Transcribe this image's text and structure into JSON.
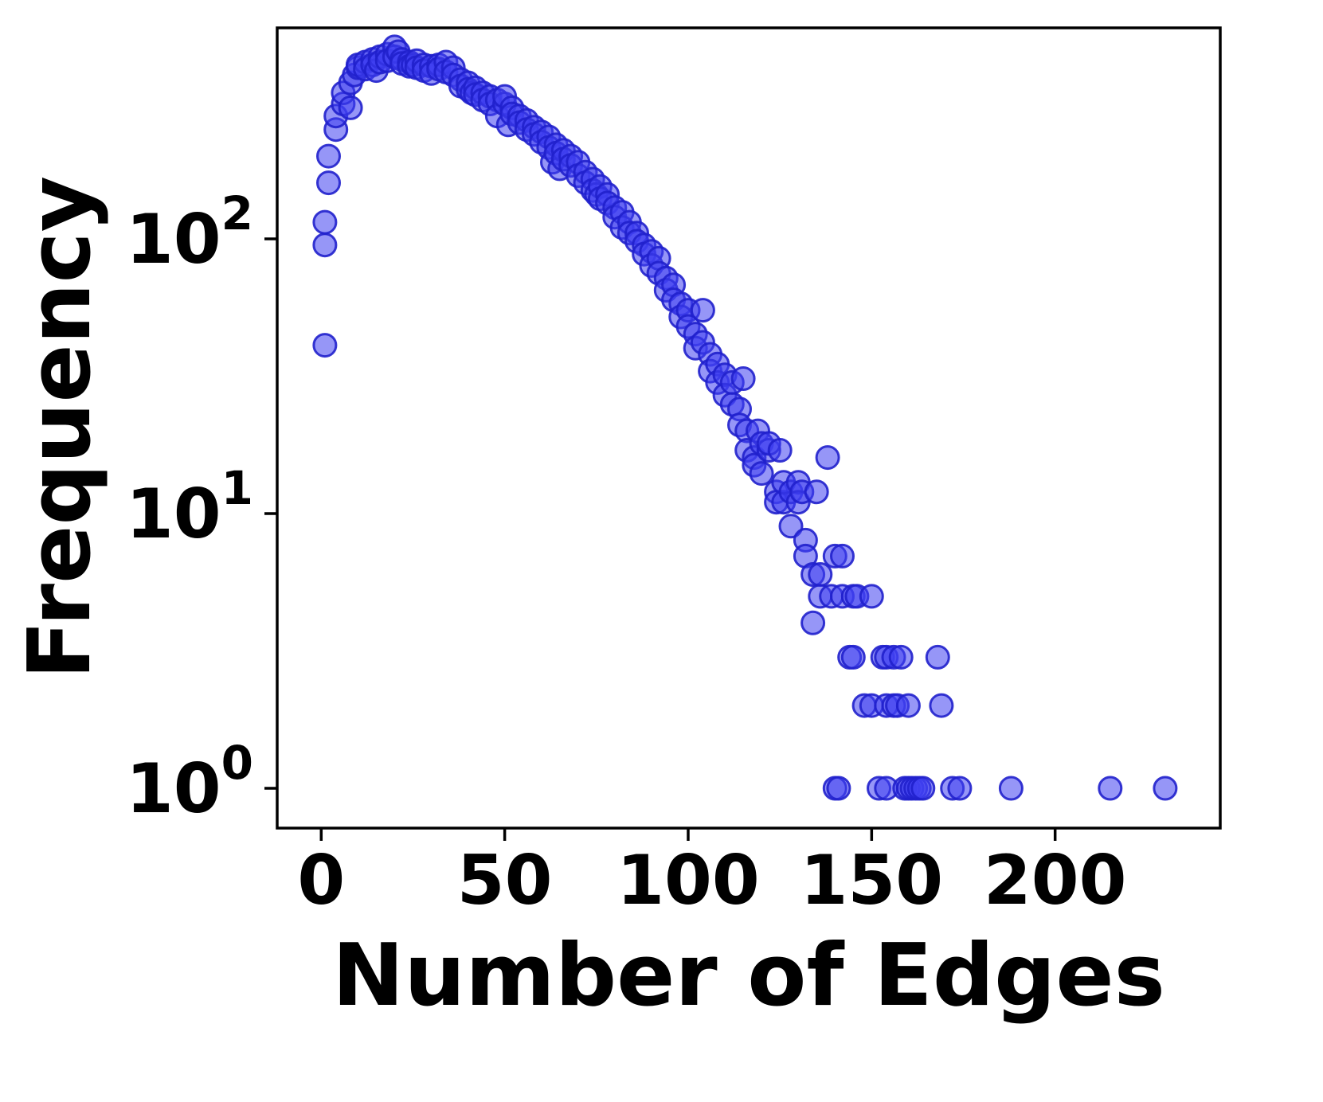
{
  "chart_data": {
    "type": "scatter",
    "title": "",
    "xlabel": "Number of Edges",
    "ylabel": "Frequency",
    "yscale": "log",
    "grid": false,
    "legend": null,
    "xlim": [
      -12,
      245
    ],
    "ylim": [
      0.72,
      590
    ],
    "x_ticks": [
      0,
      50,
      100,
      150,
      200
    ],
    "y_ticks": [
      {
        "base": "10",
        "exp": "0",
        "value": 1
      },
      {
        "base": "10",
        "exp": "1",
        "value": 10
      },
      {
        "base": "10",
        "exp": "2",
        "value": 100
      }
    ],
    "marker": {
      "shape": "circle",
      "fill_color": "#4040f0",
      "fill_opacity": 0.55,
      "edge_color": "#2020cc",
      "edge_opacity": 0.9,
      "radius_px": 14
    },
    "frame_color": "#000000",
    "points": [
      [
        1,
        41
      ],
      [
        1,
        95
      ],
      [
        1,
        115
      ],
      [
        2,
        160
      ],
      [
        2,
        200
      ],
      [
        4,
        250
      ],
      [
        4,
        280
      ],
      [
        6,
        310
      ],
      [
        6,
        340
      ],
      [
        8,
        300
      ],
      [
        8,
        370
      ],
      [
        9,
        395
      ],
      [
        10,
        420
      ],
      [
        10,
        430
      ],
      [
        12,
        440
      ],
      [
        12,
        415
      ],
      [
        14,
        450
      ],
      [
        14,
        430
      ],
      [
        15,
        410
      ],
      [
        16,
        460
      ],
      [
        16,
        440
      ],
      [
        18,
        470
      ],
      [
        18,
        445
      ],
      [
        20,
        500
      ],
      [
        20,
        460
      ],
      [
        21,
        480
      ],
      [
        22,
        450
      ],
      [
        22,
        435
      ],
      [
        24,
        440
      ],
      [
        24,
        425
      ],
      [
        25,
        430
      ],
      [
        26,
        445
      ],
      [
        26,
        420
      ],
      [
        28,
        430
      ],
      [
        28,
        410
      ],
      [
        30,
        425
      ],
      [
        30,
        400
      ],
      [
        32,
        430
      ],
      [
        32,
        415
      ],
      [
        34,
        440
      ],
      [
        34,
        405
      ],
      [
        36,
        420
      ],
      [
        36,
        395
      ],
      [
        38,
        380
      ],
      [
        38,
        360
      ],
      [
        40,
        370
      ],
      [
        40,
        350
      ],
      [
        41,
        340
      ],
      [
        42,
        355
      ],
      [
        42,
        335
      ],
      [
        44,
        340
      ],
      [
        44,
        320
      ],
      [
        46,
        330
      ],
      [
        46,
        310
      ],
      [
        48,
        320
      ],
      [
        48,
        280
      ],
      [
        50,
        310
      ],
      [
        50,
        330
      ],
      [
        51,
        260
      ],
      [
        52,
        300
      ],
      [
        52,
        285
      ],
      [
        54,
        280
      ],
      [
        54,
        265
      ],
      [
        56,
        270
      ],
      [
        56,
        250
      ],
      [
        58,
        255
      ],
      [
        58,
        240
      ],
      [
        60,
        245
      ],
      [
        60,
        225
      ],
      [
        62,
        235
      ],
      [
        62,
        215
      ],
      [
        63,
        190
      ],
      [
        64,
        220
      ],
      [
        64,
        205
      ],
      [
        65,
        180
      ],
      [
        66,
        210
      ],
      [
        66,
        195
      ],
      [
        68,
        200
      ],
      [
        68,
        185
      ],
      [
        70,
        190
      ],
      [
        70,
        170
      ],
      [
        72,
        175
      ],
      [
        72,
        160
      ],
      [
        74,
        165
      ],
      [
        74,
        150
      ],
      [
        75,
        145
      ],
      [
        76,
        155
      ],
      [
        76,
        140
      ],
      [
        78,
        145
      ],
      [
        78,
        135
      ],
      [
        80,
        130
      ],
      [
        80,
        120
      ],
      [
        82,
        125
      ],
      [
        82,
        110
      ],
      [
        84,
        115
      ],
      [
        84,
        105
      ],
      [
        86,
        105
      ],
      [
        86,
        98
      ],
      [
        88,
        95
      ],
      [
        88,
        88
      ],
      [
        90,
        90
      ],
      [
        90,
        80
      ],
      [
        92,
        85
      ],
      [
        92,
        75
      ],
      [
        94,
        72
      ],
      [
        94,
        65
      ],
      [
        96,
        68
      ],
      [
        96,
        60
      ],
      [
        98,
        58
      ],
      [
        98,
        52
      ],
      [
        100,
        55
      ],
      [
        100,
        48
      ],
      [
        102,
        45
      ],
      [
        102,
        40
      ],
      [
        104,
        42
      ],
      [
        104,
        55
      ],
      [
        106,
        38
      ],
      [
        106,
        33
      ],
      [
        108,
        35
      ],
      [
        108,
        30
      ],
      [
        110,
        32
      ],
      [
        110,
        27
      ],
      [
        112,
        25
      ],
      [
        112,
        30
      ],
      [
        114,
        24
      ],
      [
        114,
        21
      ],
      [
        115,
        31
      ],
      [
        116,
        20
      ],
      [
        116,
        17
      ],
      [
        118,
        16
      ],
      [
        118,
        15
      ],
      [
        119,
        20
      ],
      [
        120,
        18
      ],
      [
        120,
        14
      ],
      [
        122,
        17
      ],
      [
        122,
        18
      ],
      [
        124,
        12
      ],
      [
        124,
        11
      ],
      [
        125,
        17
      ],
      [
        126,
        11
      ],
      [
        126,
        13
      ],
      [
        128,
        12
      ],
      [
        128,
        9
      ],
      [
        130,
        13
      ],
      [
        130,
        11
      ],
      [
        131,
        12
      ],
      [
        132,
        8
      ],
      [
        132,
        7
      ],
      [
        134,
        4
      ],
      [
        134,
        6
      ],
      [
        135,
        12
      ],
      [
        136,
        6
      ],
      [
        136,
        5
      ],
      [
        138,
        16
      ],
      [
        139,
        5
      ],
      [
        140,
        1
      ],
      [
        140,
        7
      ],
      [
        141,
        1
      ],
      [
        142,
        7
      ],
      [
        142,
        5
      ],
      [
        144,
        3
      ],
      [
        145,
        3
      ],
      [
        145,
        5
      ],
      [
        146,
        5
      ],
      [
        148,
        2
      ],
      [
        150,
        2
      ],
      [
        150,
        5
      ],
      [
        152,
        1
      ],
      [
        153,
        3
      ],
      [
        154,
        1
      ],
      [
        154,
        3
      ],
      [
        154,
        2
      ],
      [
        156,
        2
      ],
      [
        156,
        3
      ],
      [
        157,
        2
      ],
      [
        158,
        3
      ],
      [
        159,
        1
      ],
      [
        160,
        1
      ],
      [
        160,
        2
      ],
      [
        161,
        1
      ],
      [
        162,
        1
      ],
      [
        163,
        1
      ],
      [
        164,
        1
      ],
      [
        168,
        3
      ],
      [
        169,
        2
      ],
      [
        172,
        1
      ],
      [
        174,
        1
      ],
      [
        188,
        1
      ],
      [
        215,
        1
      ],
      [
        230,
        1
      ]
    ]
  }
}
